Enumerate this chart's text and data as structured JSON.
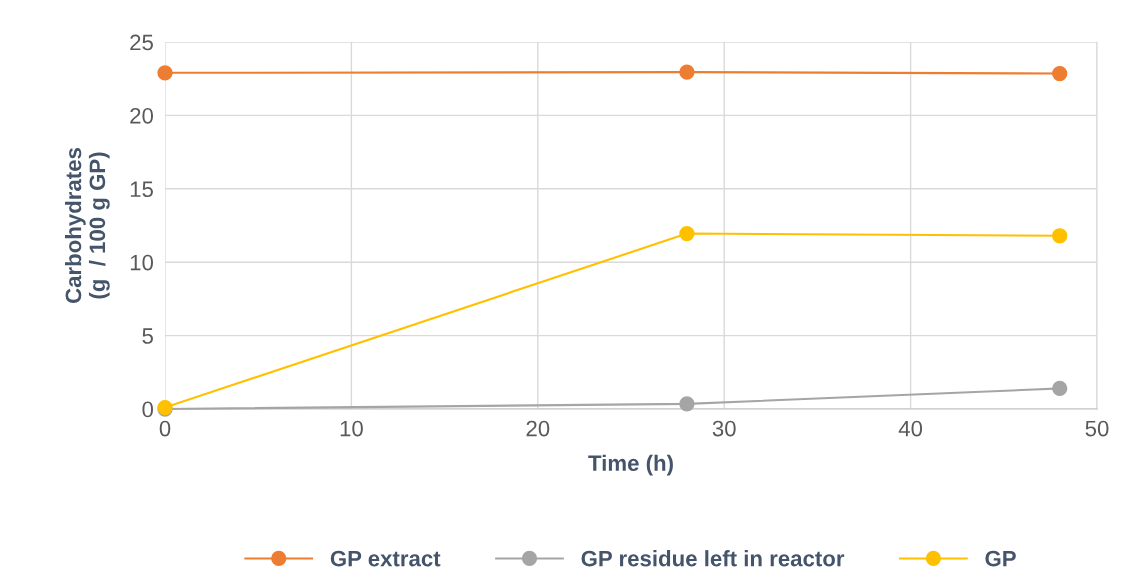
{
  "chart_data": {
    "type": "line",
    "xlabel": "Time (h)",
    "ylabel": "Carbohydrates\n(g  / 100 g GP)",
    "xlim": [
      0,
      50
    ],
    "xticks": [
      0,
      10,
      20,
      30,
      40,
      50
    ],
    "ylim": [
      0,
      25
    ],
    "yticks": [
      0,
      5,
      10,
      15,
      20,
      25
    ],
    "grid": true,
    "legend": "bottom",
    "marker": "circle",
    "line_style": "solid",
    "x": [
      0,
      28,
      48
    ],
    "series": [
      {
        "name": "GP extract",
        "color": "#ed7d31",
        "values": [
          22.9,
          22.95,
          22.85
        ]
      },
      {
        "name": "GP residue left in reactor",
        "color": "#a5a5a5",
        "values": [
          0,
          0.35,
          1.4
        ]
      },
      {
        "name": "GP",
        "color": "#ffc000",
        "values": [
          0.1,
          11.95,
          11.8
        ]
      }
    ]
  }
}
